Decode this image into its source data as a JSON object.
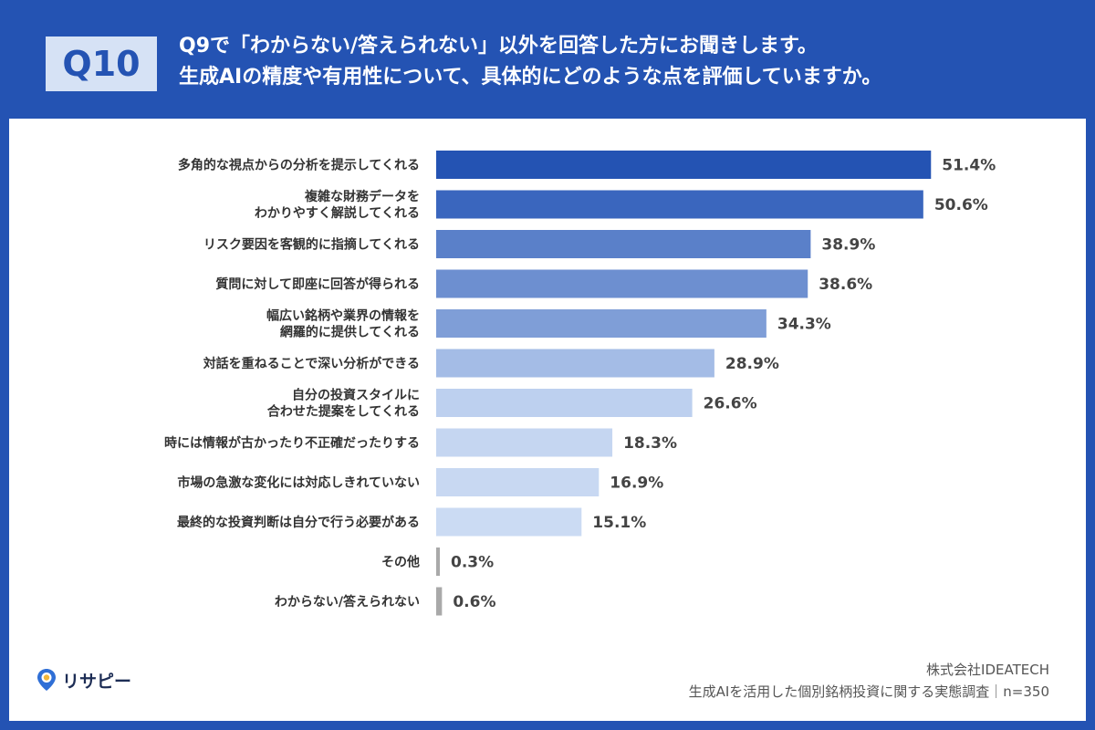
{
  "header": {
    "badge": "Q10",
    "question_line1": "Q9で「わからない/答えられない」以外を回答した方にお聞きします。",
    "question_line2": "生成AIの精度や有用性について、具体的にどのような点を評価していますか。"
  },
  "footer": {
    "logo_text": "リサピー",
    "company": "株式会社IDEATECH",
    "survey": "生成AIを活用した個別銘柄投資に関する実態調査｜n=350"
  },
  "colors": {
    "background": "#2453b3",
    "badge_bg": "#d6e2f5",
    "minor_bar": "#a9a9a9"
  },
  "chart_data": {
    "type": "bar",
    "orientation": "horizontal",
    "unit": "%",
    "xlim": [
      0,
      60
    ],
    "grid": false,
    "legend": "none",
    "categories": [
      [
        "多角的な視点からの分析を提示してくれる"
      ],
      [
        "複雑な財務データを",
        "わかりやすく解説してくれる"
      ],
      [
        "リスク要因を客観的に指摘してくれる"
      ],
      [
        "質問に対して即座に回答が得られる"
      ],
      [
        "幅広い銘柄や業界の情報を",
        "網羅的に提供してくれる"
      ],
      [
        "対話を重ねることで深い分析ができる"
      ],
      [
        "自分の投資スタイルに",
        "合わせた提案をしてくれる"
      ],
      [
        "時には情報が古かったり不正確だったりする"
      ],
      [
        "市場の急激な変化には対応しきれていない"
      ],
      [
        "最終的な投資判断は自分で行う必要がある"
      ],
      [
        "その他"
      ],
      [
        "わからない/答えられない"
      ]
    ],
    "values": [
      51.4,
      50.6,
      38.9,
      38.6,
      34.3,
      28.9,
      26.6,
      18.3,
      16.9,
      15.1,
      0.3,
      0.6
    ],
    "value_labels": [
      "51.4%",
      "50.6%",
      "38.9%",
      "38.6%",
      "34.3%",
      "28.9%",
      "26.6%",
      "18.3%",
      "16.9%",
      "15.1%",
      "0.3%",
      "0.6%"
    ],
    "bar_colors": [
      "#2453b3",
      "#3a66be",
      "#5a80c9",
      "#6d8fd0",
      "#7f9ed7",
      "#a4bce6",
      "#bdd0ef",
      "#c5d6f1",
      "#c8d8f2",
      "#cbdbf3",
      "#a9a9a9",
      "#a9a9a9"
    ]
  }
}
